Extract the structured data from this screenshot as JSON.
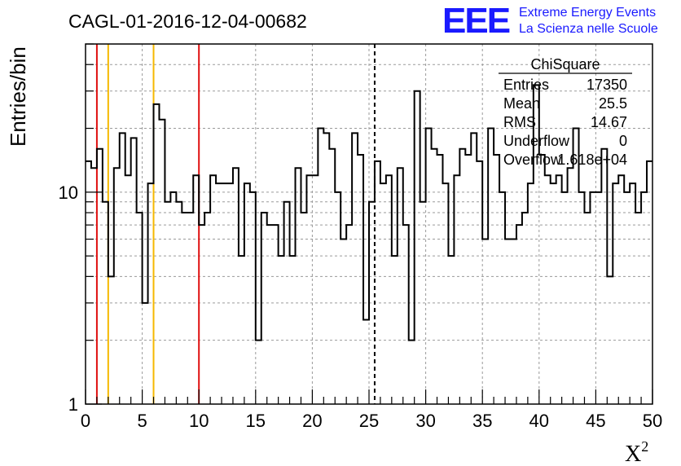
{
  "header": {
    "title": "CAGL-01-2016-12-04-00682",
    "logo_text": "EEE",
    "logo_line1": "Extreme Energy Events",
    "logo_line2": "La Scienza nelle Scuole",
    "logo_color": "#1a1aff"
  },
  "stats_box": {
    "name": "ChiSquare",
    "rows": [
      {
        "label": "Entries",
        "value": "17350"
      },
      {
        "label": "Mean",
        "value": "25.5"
      },
      {
        "label": "RMS",
        "value": "14.67"
      },
      {
        "label": "Underflow",
        "value": "0"
      },
      {
        "label": "Overflow",
        "value": "1.618e+04"
      }
    ]
  },
  "chart_data": {
    "type": "histogram",
    "title": "CAGL-01-2016-12-04-00682",
    "xlabel": "X",
    "xlabel_superscript": "2",
    "ylabel": "Entries/bin",
    "xlim": [
      0,
      50
    ],
    "ylim": [
      1,
      50
    ],
    "yscale": "log",
    "grid": true,
    "bin_width": 0.5,
    "x_ticks": [
      0,
      5,
      10,
      15,
      20,
      25,
      30,
      35,
      40,
      45,
      50
    ],
    "x_tick_labels": [
      "0",
      "5",
      "10",
      "15",
      "20",
      "25",
      "30",
      "35",
      "40",
      "45",
      "50"
    ],
    "y_ticks": [
      1,
      10
    ],
    "y_tick_labels": [
      "1",
      "10"
    ],
    "bin_counts": [
      14,
      13,
      16,
      9,
      4,
      13,
      19,
      12,
      18,
      8,
      3,
      11,
      26,
      22,
      9,
      10,
      9,
      8,
      8,
      12,
      7,
      8,
      12,
      11,
      11,
      11,
      13,
      5,
      11,
      10,
      2,
      8,
      7,
      7,
      5,
      9,
      5,
      13,
      8,
      12,
      12,
      20,
      19,
      16,
      10,
      6,
      7,
      19,
      15,
      2.5,
      9,
      14,
      11,
      12,
      5,
      13,
      7,
      2,
      30,
      9,
      20,
      16,
      15,
      11,
      5,
      12,
      16,
      15,
      19,
      14,
      6,
      20,
      15,
      10,
      6,
      6,
      7,
      8,
      11,
      32,
      15,
      12,
      11,
      12,
      10,
      13,
      20,
      10,
      8,
      10,
      10,
      16,
      4,
      11,
      12,
      10,
      11,
      8,
      10,
      14
    ],
    "vertical_lines": [
      {
        "x": 1,
        "color": "#e01010",
        "style": "solid"
      },
      {
        "x": 2,
        "color": "#f5b800",
        "style": "solid"
      },
      {
        "x": 6,
        "color": "#f5b800",
        "style": "solid"
      },
      {
        "x": 10,
        "color": "#e01010",
        "style": "solid"
      },
      {
        "x": 25.5,
        "color": "#000000",
        "style": "dashed"
      }
    ]
  }
}
